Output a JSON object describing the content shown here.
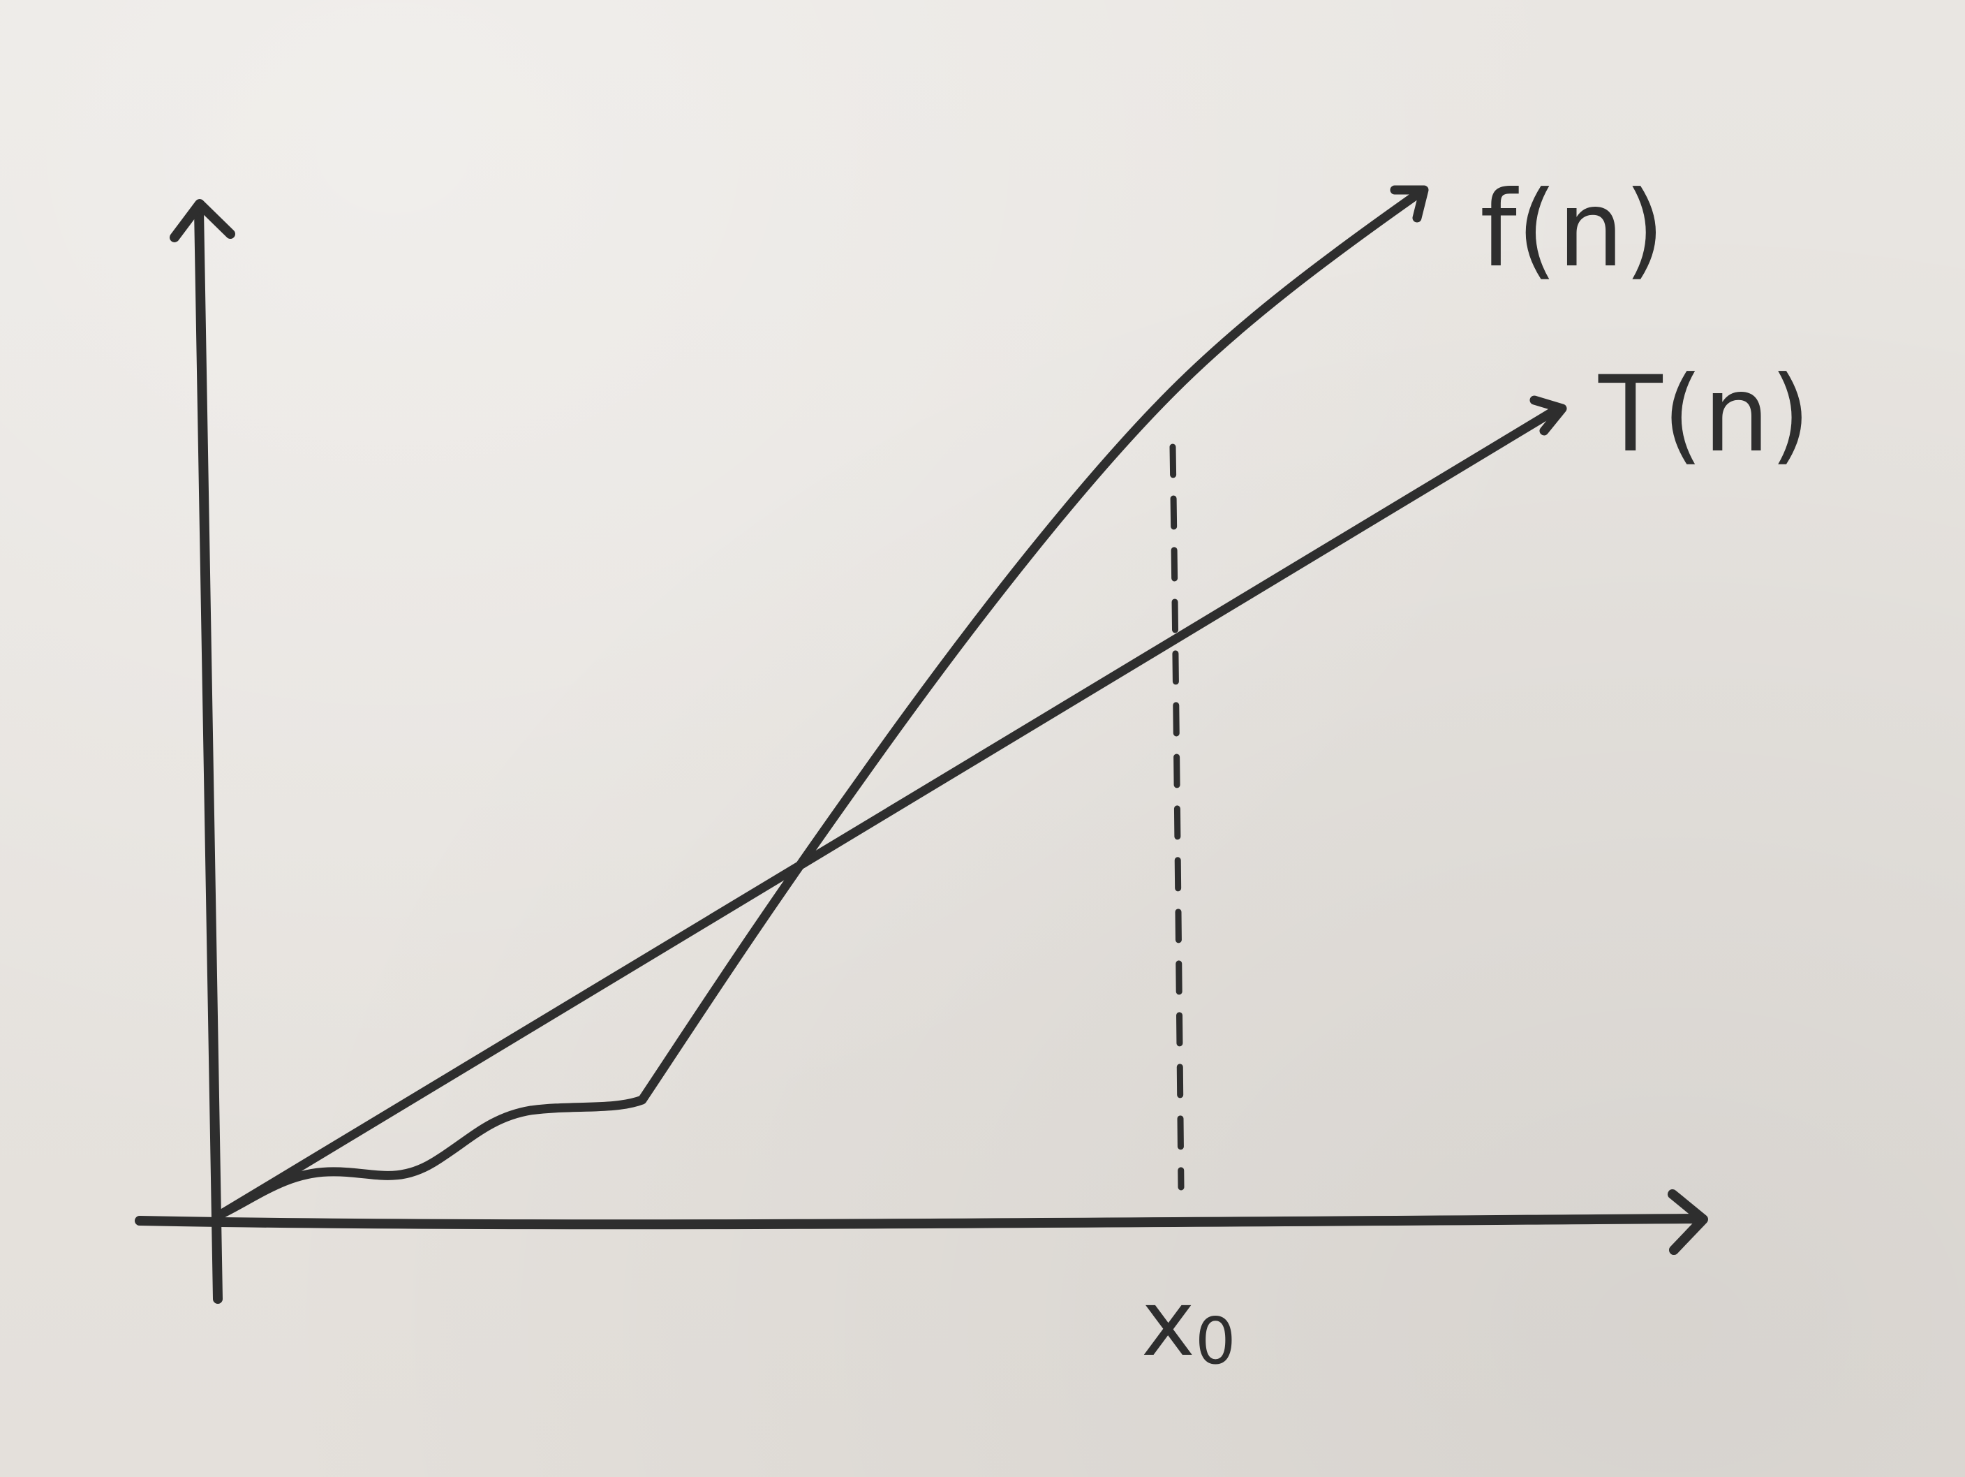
{
  "diagram": {
    "curve_labels": {
      "f": "f(n)",
      "t": "T(n)"
    },
    "x_marker_label": "x",
    "x_marker_subscript": "0"
  }
}
